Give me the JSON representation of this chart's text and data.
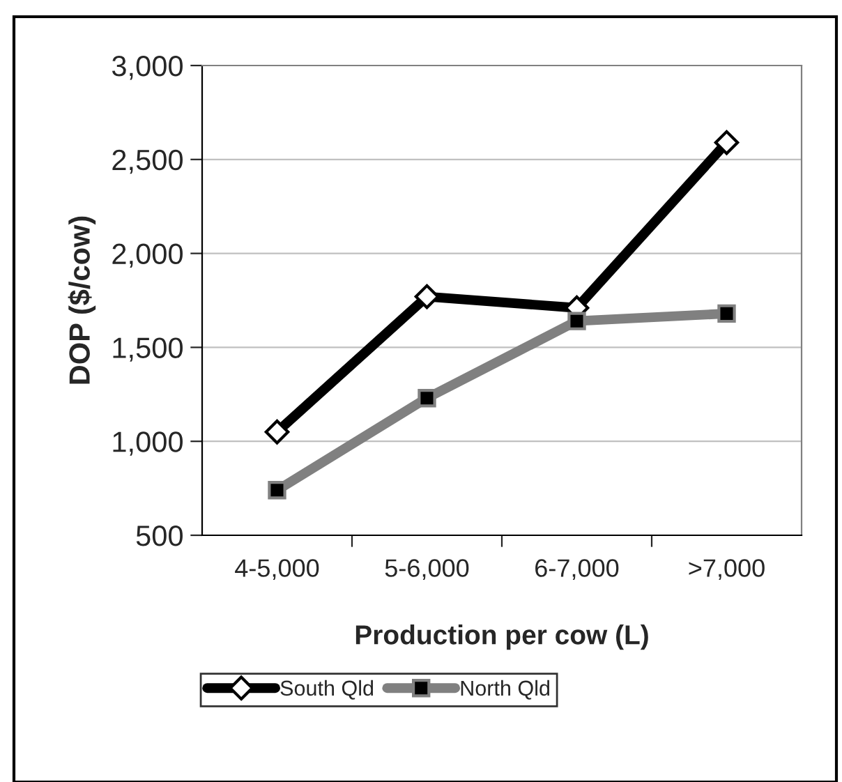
{
  "chart_data": {
    "type": "line",
    "xlabel": "Production per cow (L)",
    "ylabel": "DOP ($/cow)",
    "categories": [
      "4-5,000",
      "5-6,000",
      "6-7,000",
      ">7,000"
    ],
    "series": [
      {
        "name": "South Qld",
        "color": "#000000",
        "marker": "diamond",
        "values": [
          1050,
          1770,
          1710,
          2590
        ]
      },
      {
        "name": "North Qld",
        "color": "#808080",
        "marker": "square",
        "values": [
          740,
          1230,
          1640,
          1680
        ]
      }
    ],
    "ylim": [
      500,
      3000
    ],
    "yticks": [
      {
        "value": 500,
        "label": "500"
      },
      {
        "value": 1000,
        "label": "1,000"
      },
      {
        "value": 1500,
        "label": "1,500"
      },
      {
        "value": 2000,
        "label": "2,000"
      },
      {
        "value": 2500,
        "label": "2,500"
      },
      {
        "value": 3000,
        "label": "3,000"
      }
    ],
    "grid": "y",
    "legend": "bottom",
    "line_style": "solid"
  }
}
